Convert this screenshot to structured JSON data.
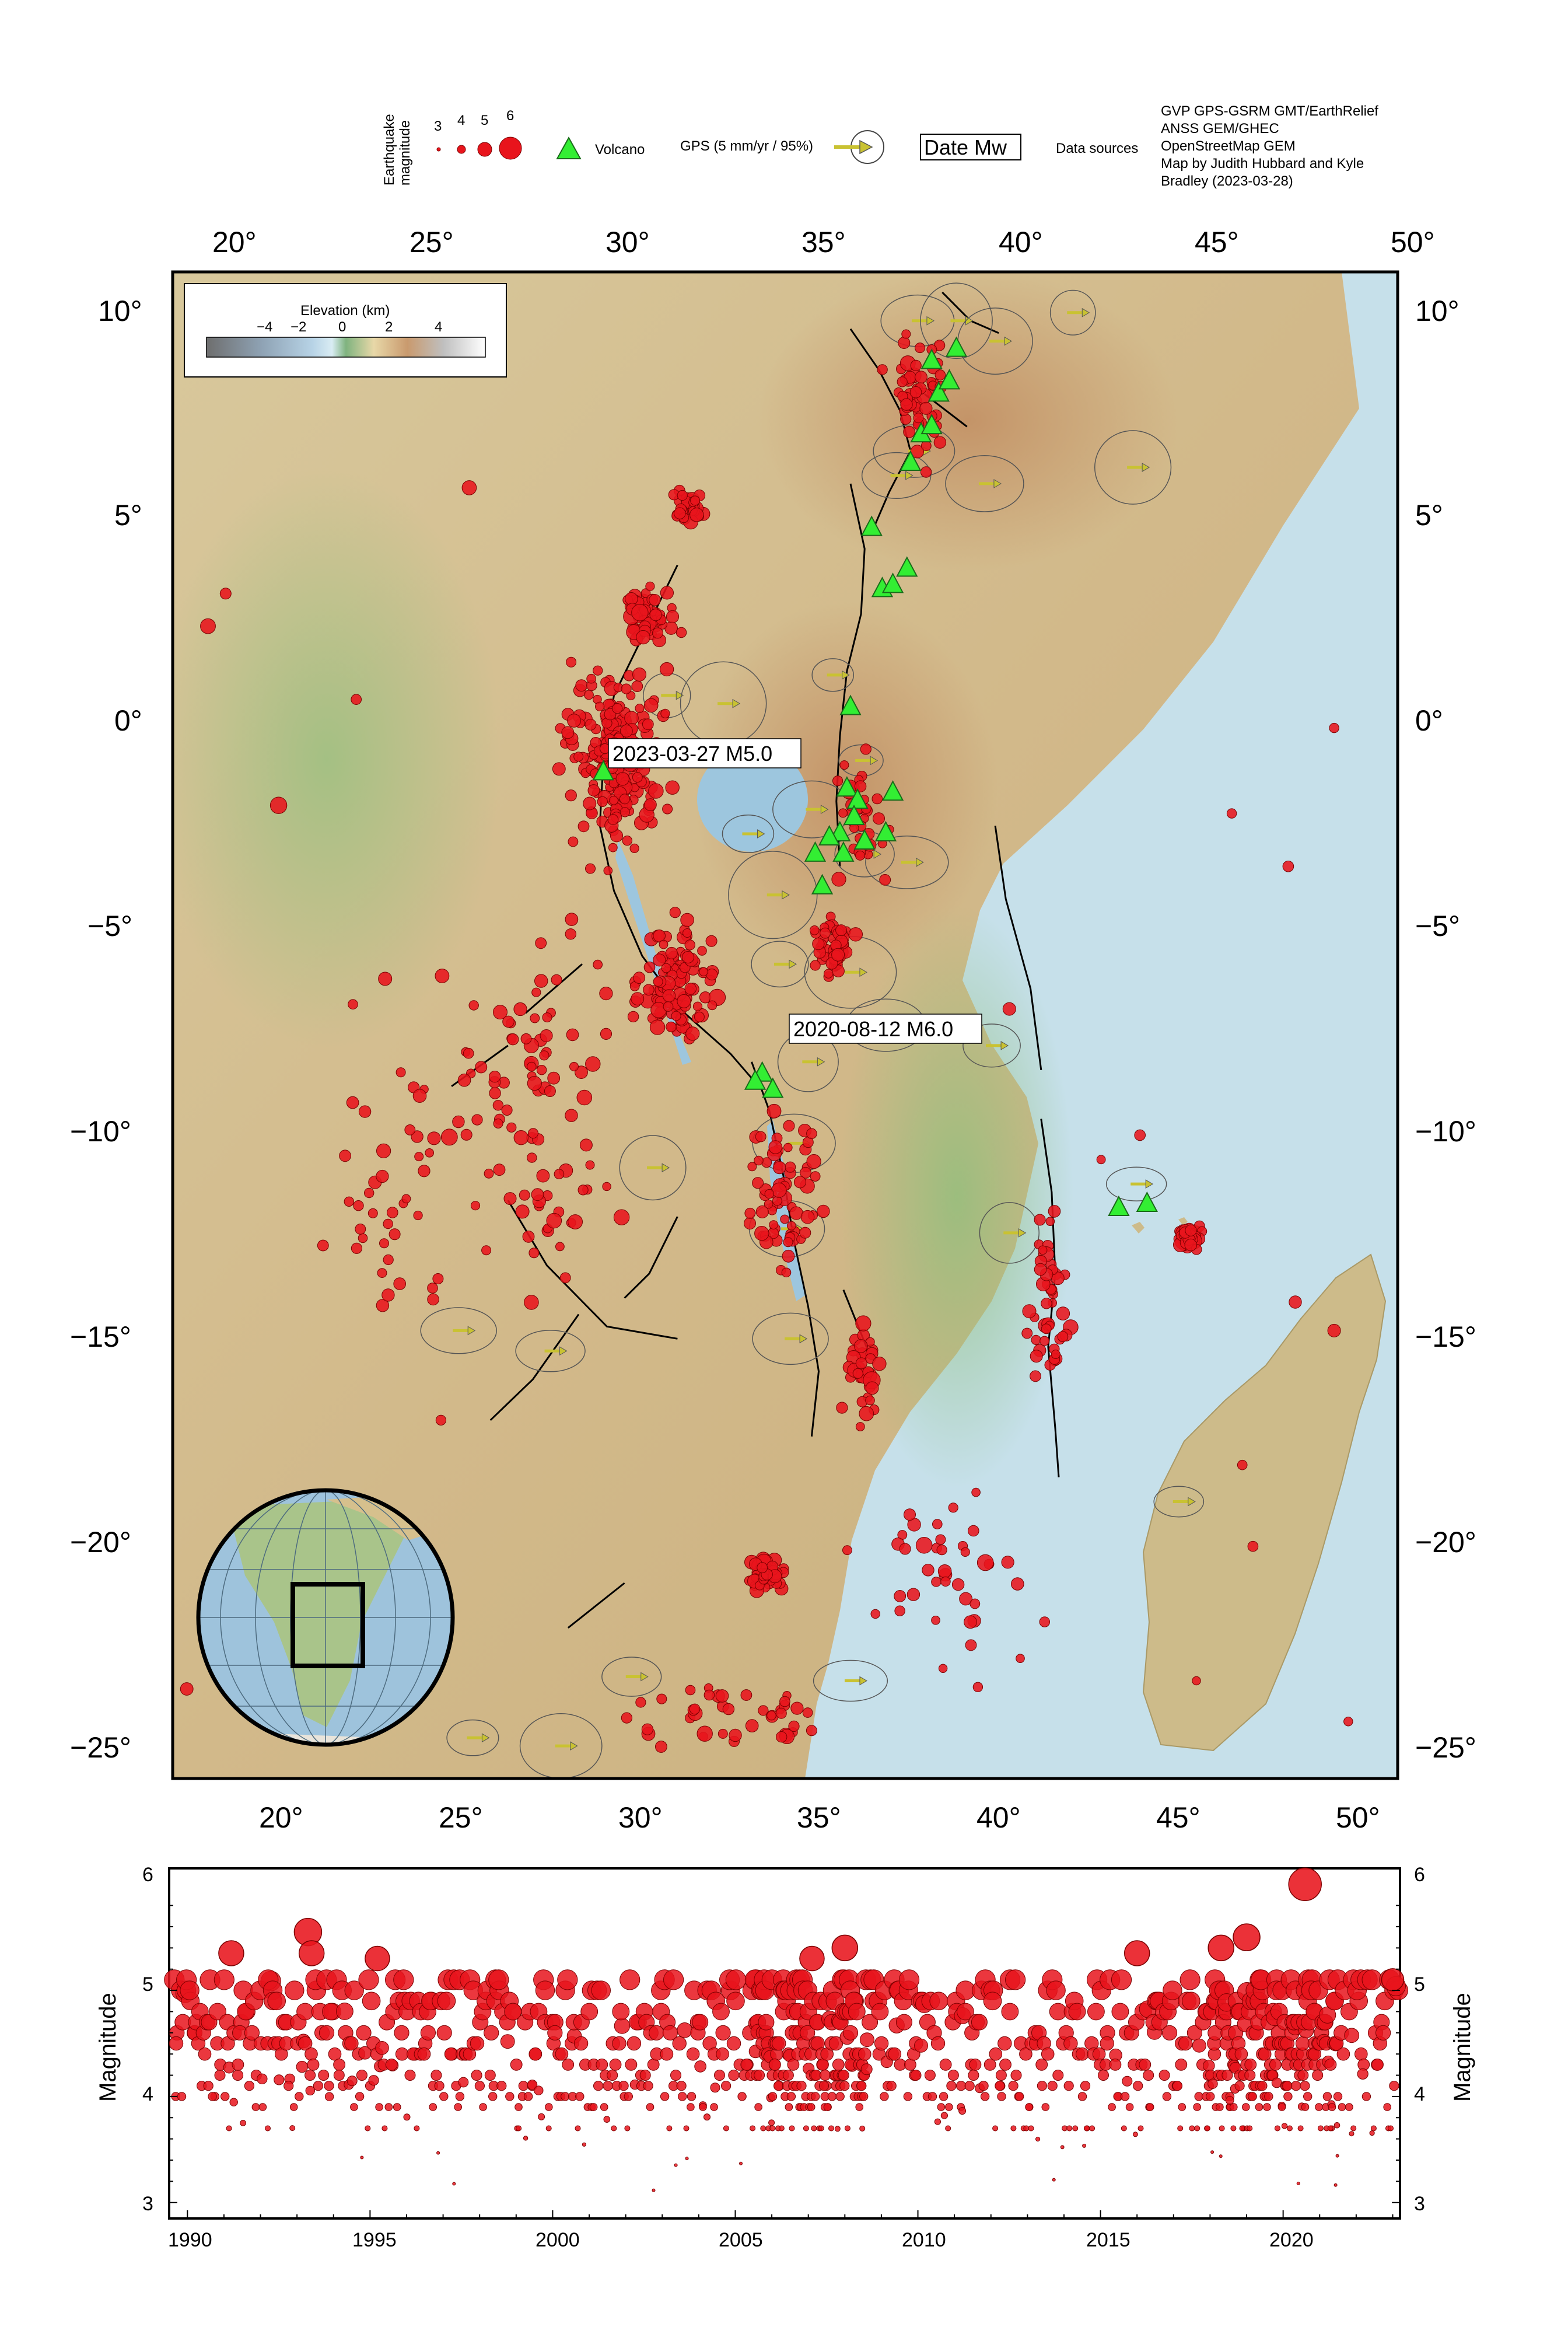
{
  "legend": {
    "eq_title_1": "Earthquake",
    "eq_title_2": "magnitude",
    "eq_mags": [
      "3",
      "4",
      "5",
      "6"
    ],
    "volcano_label": "Volcano",
    "gps_label": "GPS (5 mm/yr / 95%)",
    "date_label": "Date Mw",
    "sources_title": "Data sources",
    "sources": [
      "GVP GPS-GSRM GMT/EarthRelief",
      "ANSS GEM/GHEC",
      "OpenStreetMap GEM",
      "Map by Judith Hubbard and Kyle",
      "Bradley (2023-03-28)"
    ]
  },
  "elevation_bar": {
    "title": "Elevation (km)",
    "ticks": [
      "−4",
      "−2",
      "0",
      "2",
      "4"
    ],
    "colors": [
      "#6e6e6e",
      "#8fa3b5",
      "#b7d3e6",
      "#d9ecf3",
      "#7fb37f",
      "#e8d8a8",
      "#c99a6e",
      "#bfbfbf",
      "#ffffff"
    ]
  },
  "map": {
    "lon_labels": [
      "20°",
      "25°",
      "30°",
      "35°",
      "40°",
      "45°",
      "50°"
    ],
    "lat_labels": [
      "10°",
      "5°",
      "0°",
      "−5°",
      "−10°",
      "−15°",
      "−20°",
      "−25°"
    ],
    "annotations": [
      {
        "text": "2023-03-27 M5.0",
        "lon": 29.1,
        "lat": -1.1
      },
      {
        "text": "2020-08-12 M6.0",
        "lon": 40.2,
        "lat": -7.2
      }
    ],
    "colors": {
      "quake": "#e8141c",
      "volcano": "#33ee33",
      "gps": "#c9c232",
      "fault": "#000000",
      "ocean": "#c6e0ea",
      "land": "#d9caa0"
    },
    "volcanoes": [
      [
        37.1,
        3.2
      ],
      [
        37.4,
        3.3
      ],
      [
        37.8,
        3.7
      ],
      [
        36.8,
        4.7
      ],
      [
        37.9,
        6.3
      ],
      [
        38.2,
        7.0
      ],
      [
        38.5,
        7.2
      ],
      [
        38.7,
        8.0
      ],
      [
        39.0,
        8.3
      ],
      [
        38.5,
        8.8
      ],
      [
        39.2,
        9.1
      ],
      [
        36.2,
        0.3
      ],
      [
        36.1,
        -1.7
      ],
      [
        36.4,
        -2.0
      ],
      [
        37.4,
        -1.8
      ],
      [
        35.9,
        -2.8
      ],
      [
        36.3,
        -2.4
      ],
      [
        35.6,
        -2.9
      ],
      [
        35.4,
        -4.1
      ],
      [
        36.0,
        -3.3
      ],
      [
        37.2,
        -2.8
      ],
      [
        29.2,
        -1.3
      ],
      [
        33.7,
        -8.7
      ],
      [
        33.5,
        -8.9
      ],
      [
        34.0,
        -9.1
      ],
      [
        43.8,
        -12.0
      ],
      [
        44.6,
        -11.9
      ],
      [
        35.2,
        -3.3
      ],
      [
        36.6,
        -3.0
      ]
    ],
    "gps_sites": [
      [
        38.1,
        9.8
      ],
      [
        39.2,
        9.8
      ],
      [
        40.3,
        9.3
      ],
      [
        42.5,
        10.0
      ],
      [
        44.2,
        6.2
      ],
      [
        40.0,
        5.8
      ],
      [
        38.0,
        6.6
      ],
      [
        37.5,
        6.0
      ],
      [
        31.0,
        0.6
      ],
      [
        32.6,
        0.4
      ],
      [
        35.7,
        1.1
      ],
      [
        35.1,
        -2.2
      ],
      [
        33.3,
        -2.8
      ],
      [
        34.0,
        -4.3
      ],
      [
        36.6,
        -3.3
      ],
      [
        37.8,
        -3.5
      ],
      [
        36.5,
        -1.0
      ],
      [
        34.2,
        -6.0
      ],
      [
        36.2,
        -6.2
      ],
      [
        37.2,
        -7.5
      ],
      [
        35.0,
        -8.4
      ],
      [
        34.6,
        -10.4
      ],
      [
        30.6,
        -11.0
      ],
      [
        25.1,
        -15.0
      ],
      [
        27.7,
        -15.5
      ],
      [
        34.4,
        -12.5
      ],
      [
        34.5,
        -15.2
      ],
      [
        40.2,
        -8.0
      ],
      [
        40.7,
        -12.6
      ],
      [
        44.3,
        -11.4
      ],
      [
        45.5,
        -19.2
      ],
      [
        36.2,
        -23.6
      ],
      [
        25.5,
        -25.0
      ],
      [
        30.0,
        -23.5
      ],
      [
        28.0,
        -25.2
      ]
    ],
    "faults": [
      [
        [
          36.2,
          9.6
        ],
        [
          37.0,
          8.6
        ],
        [
          37.6,
          7.6
        ],
        [
          37.9,
          6.6
        ],
        [
          37.3,
          5.6
        ],
        [
          36.8,
          4.6
        ]
      ],
      [
        [
          38.8,
          10.5
        ],
        [
          39.6,
          9.8
        ],
        [
          40.4,
          9.5
        ]
      ],
      [
        [
          36.2,
          5.8
        ],
        [
          36.6,
          4.2
        ],
        [
          36.5,
          2.6
        ],
        [
          36.1,
          1.2
        ],
        [
          35.9,
          -0.4
        ],
        [
          35.8,
          -2.0
        ],
        [
          35.9,
          -3.6
        ]
      ],
      [
        [
          31.3,
          3.8
        ],
        [
          30.4,
          2.2
        ],
        [
          29.5,
          0.6
        ],
        [
          29.2,
          -1.0
        ],
        [
          29.1,
          -2.6
        ],
        [
          29.5,
          -4.2
        ],
        [
          30.3,
          -5.8
        ],
        [
          31.5,
          -7.2
        ],
        [
          32.8,
          -8.2
        ],
        [
          33.6,
          -9.0
        ]
      ],
      [
        [
          33.4,
          -8.4
        ],
        [
          33.9,
          -9.6
        ],
        [
          34.3,
          -11.2
        ],
        [
          34.6,
          -12.8
        ],
        [
          35.0,
          -14.4
        ],
        [
          35.3,
          -16.0
        ],
        [
          35.1,
          -17.6
        ]
      ],
      [
        [
          41.6,
          -9.8
        ],
        [
          41.9,
          -11.6
        ],
        [
          42.0,
          -13.6
        ],
        [
          41.8,
          -15.4
        ],
        [
          42.0,
          -17.4
        ],
        [
          42.1,
          -18.6
        ]
      ],
      [
        [
          40.3,
          -2.6
        ],
        [
          40.6,
          -4.4
        ],
        [
          41.3,
          -6.6
        ],
        [
          41.6,
          -8.6
        ]
      ],
      [
        [
          26.5,
          -11.8
        ],
        [
          27.6,
          -13.4
        ],
        [
          29.3,
          -14.9
        ],
        [
          31.3,
          -15.2
        ]
      ],
      [
        [
          28.5,
          -14.6
        ],
        [
          27.2,
          -16.2
        ],
        [
          26.0,
          -17.2
        ]
      ],
      [
        [
          36.0,
          -14.0
        ],
        [
          36.7,
          -15.5
        ]
      ],
      [
        [
          28.2,
          -22.3
        ],
        [
          29.8,
          -21.2
        ]
      ],
      [
        [
          27.0,
          -7.2
        ],
        [
          28.6,
          -6.0
        ]
      ],
      [
        [
          24.9,
          -9.0
        ],
        [
          26.5,
          -8.0
        ]
      ],
      [
        [
          31.3,
          -12.2
        ],
        [
          30.5,
          -13.6
        ],
        [
          29.8,
          -14.2
        ]
      ],
      [
        [
          38.3,
          8.0
        ],
        [
          39.5,
          7.2
        ]
      ]
    ],
    "quake_clusters": [
      {
        "lon": 29.5,
        "lat": -0.8,
        "dlon": 1.8,
        "dlat": 3.2,
        "n": 200
      },
      {
        "lon": 31.2,
        "lat": -6.5,
        "dlon": 1.6,
        "dlat": 2.2,
        "n": 110
      },
      {
        "lon": 34.3,
        "lat": -11.5,
        "dlon": 1.3,
        "dlat": 2.8,
        "n": 70
      },
      {
        "lon": 35.7,
        "lat": -5.5,
        "dlon": 0.8,
        "dlat": 0.9,
        "n": 50
      },
      {
        "lon": 33.8,
        "lat": -21.0,
        "dlon": 0.7,
        "dlat": 0.6,
        "n": 55
      },
      {
        "lon": 31.6,
        "lat": 5.2,
        "dlon": 0.6,
        "dlat": 0.6,
        "n": 35
      },
      {
        "lon": 45.8,
        "lat": -12.7,
        "dlon": 0.5,
        "dlat": 0.4,
        "n": 45
      },
      {
        "lon": 41.8,
        "lat": -14.0,
        "dlon": 0.8,
        "dlat": 3.5,
        "n": 45
      },
      {
        "lon": 36.5,
        "lat": -16.0,
        "dlon": 0.7,
        "dlat": 1.8,
        "n": 35
      },
      {
        "lon": 27.5,
        "lat": -9.5,
        "dlon": 2.8,
        "dlat": 5.5,
        "n": 90
      },
      {
        "lon": 38.2,
        "lat": 8.0,
        "dlon": 1.2,
        "dlat": 2.5,
        "n": 55
      },
      {
        "lon": 36.5,
        "lat": -2.5,
        "dlon": 1.0,
        "dlat": 2.0,
        "n": 35
      },
      {
        "lon": 33.0,
        "lat": -24.5,
        "dlon": 4.0,
        "dlat": 1.2,
        "n": 40
      },
      {
        "lon": 39.0,
        "lat": -21.0,
        "dlon": 3.5,
        "dlat": 3.5,
        "n": 40
      },
      {
        "lon": 23.5,
        "lat": -11.0,
        "dlon": 2.5,
        "dlat": 6.0,
        "n": 45
      },
      {
        "lon": 30.5,
        "lat": 2.5,
        "dlon": 1.2,
        "dlat": 1.0,
        "n": 60
      }
    ],
    "quake_singles": [
      [
        25.4,
        5.7
      ],
      [
        18.0,
        2.3
      ],
      [
        18.5,
        3.1
      ],
      [
        22.2,
        0.5
      ],
      [
        20.0,
        -2.1
      ],
      [
        48.6,
        -3.6
      ],
      [
        47.0,
        -2.3
      ],
      [
        49.9,
        -0.2
      ],
      [
        43.3,
        -10.8
      ],
      [
        44.4,
        -10.2
      ],
      [
        48.8,
        -14.3
      ],
      [
        49.9,
        -15.0
      ],
      [
        47.3,
        -18.3
      ],
      [
        47.6,
        -20.3
      ],
      [
        46.0,
        -23.6
      ],
      [
        50.3,
        -24.6
      ],
      [
        17.4,
        -23.8
      ],
      [
        24.6,
        -17.2
      ],
      [
        22.1,
        -9.4
      ],
      [
        28.3,
        -4.9
      ],
      [
        40.7,
        -7.1
      ]
    ]
  },
  "inset_globe": {
    "label": "inset"
  },
  "timeseries": {
    "ylabel": "Magnitude",
    "y_ticks": [
      "3",
      "4",
      "5",
      "6"
    ],
    "x_ticks": [
      "1990",
      "1995",
      "2000",
      "2005",
      "2010",
      "2015",
      "2020"
    ],
    "chart_data": {
      "type": "scatter",
      "xlim": [
        1989.5,
        2023.2
      ],
      "ylim": [
        2.85,
        6.15
      ],
      "highlights": [
        {
          "x": 2020.6,
          "y": 6.0
        },
        {
          "x": 1993.3,
          "y": 5.55
        },
        {
          "x": 1993.4,
          "y": 5.35
        },
        {
          "x": 2019.0,
          "y": 5.5
        },
        {
          "x": 2018.3,
          "y": 5.4
        },
        {
          "x": 2008.0,
          "y": 5.4
        },
        {
          "x": 2016.0,
          "y": 5.35
        },
        {
          "x": 1991.2,
          "y": 5.35
        },
        {
          "x": 1995.2,
          "y": 5.3
        },
        {
          "x": 2007.1,
          "y": 5.3
        },
        {
          "x": 2023.0,
          "y": 5.1
        }
      ]
    }
  }
}
